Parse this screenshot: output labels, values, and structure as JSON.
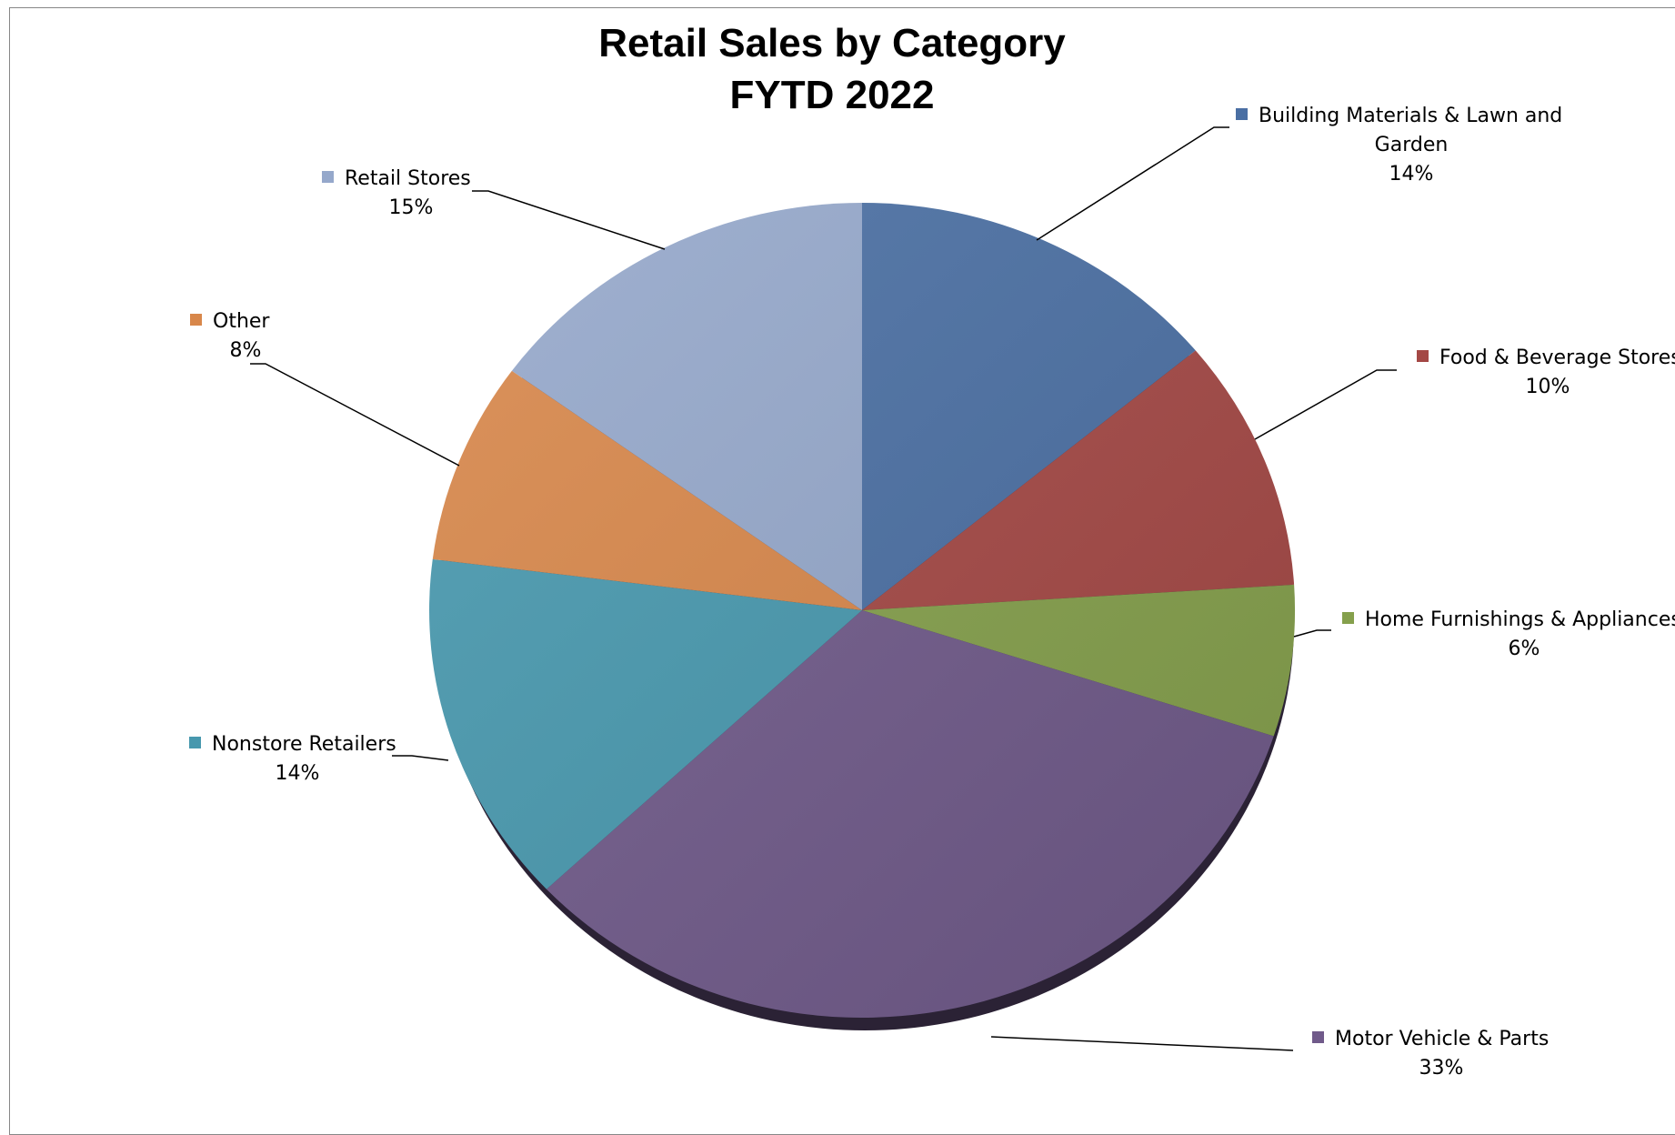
{
  "chart_data": {
    "type": "pie",
    "title": [
      "Retail Sales by Category",
      "FYTD 2022"
    ],
    "slices": [
      {
        "name": "Building Materials & Lawn and Garden",
        "label_lines": [
          "Building Materials & Lawn and",
          "Garden"
        ],
        "value": 14,
        "value_label": "14%",
        "color": "#4A6FA3"
      },
      {
        "name": "Food & Beverage Stores",
        "label_lines": [
          "Food & Beverage Stores"
        ],
        "value": 10,
        "value_label": "10%",
        "color": "#A44845"
      },
      {
        "name": "Home Furnishings & Appliances",
        "label_lines": [
          "Home Furnishings & Appliances"
        ],
        "value": 6,
        "value_label": "6%",
        "color": "#85A04C"
      },
      {
        "name": "Motor Vehicle & Parts",
        "label_lines": [
          "Motor Vehicle & Parts"
        ],
        "value": 33,
        "value_label": "33%",
        "color": "#705A8A"
      },
      {
        "name": "Nonstore Retailers",
        "label_lines": [
          "Nonstore Retailers"
        ],
        "value": 14,
        "value_label": "14%",
        "color": "#4798AE"
      },
      {
        "name": "Other",
        "label_lines": [
          "Other"
        ],
        "value": 8,
        "value_label": "8%",
        "color": "#D8874A"
      },
      {
        "name": "Retail Stores",
        "label_lines": [
          "Retail Stores"
        ],
        "value": 15,
        "value_label": "15%",
        "color": "#95A8CB"
      }
    ],
    "legend": "none",
    "labels": "outside with leader lines"
  }
}
